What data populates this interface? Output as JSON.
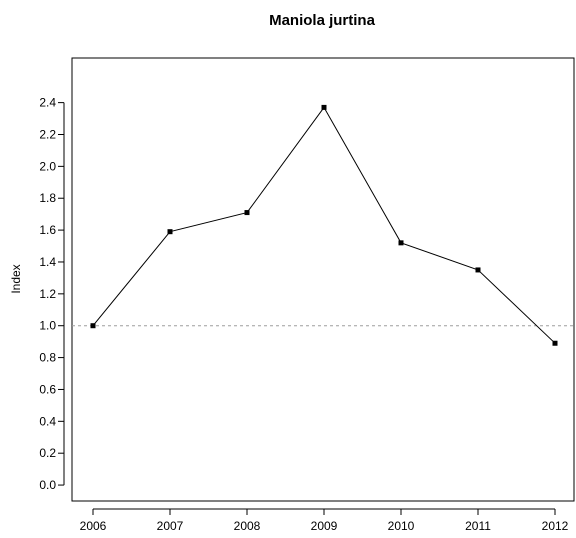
{
  "chart_data": {
    "type": "line",
    "title": "Maniola jurtina",
    "xlabel": "",
    "ylabel": "Index",
    "x": [
      2006,
      2007,
      2008,
      2009,
      2010,
      2011,
      2012
    ],
    "x_tick_labels": [
      "2006",
      "2007",
      "2008",
      "2009",
      "2010",
      "2011",
      "2012"
    ],
    "values": [
      1.0,
      1.59,
      1.71,
      2.37,
      1.52,
      1.35,
      0.89
    ],
    "ylim": [
      -0.1,
      2.68
    ],
    "y_ticks": [
      0.0,
      0.2,
      0.4,
      0.6,
      0.8,
      1.0,
      1.2,
      1.4,
      1.6,
      1.8,
      2.0,
      2.2,
      2.4
    ],
    "y_tick_labels": [
      "0.0",
      "0.2",
      "0.4",
      "0.6",
      "0.8",
      "1.0",
      "1.2",
      "1.4",
      "1.6",
      "1.8",
      "2.0",
      "2.2",
      "2.4"
    ],
    "reference_line": 1.0,
    "grid": false,
    "legend": "none",
    "colors": {
      "series": "#000000",
      "reference": "#9e9e9e"
    }
  }
}
